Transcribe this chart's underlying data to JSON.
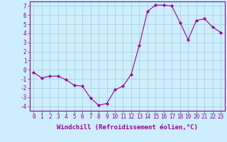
{
  "x": [
    0,
    1,
    2,
    3,
    4,
    5,
    6,
    7,
    8,
    9,
    10,
    11,
    12,
    13,
    14,
    15,
    16,
    17,
    18,
    19,
    20,
    21,
    22,
    23
  ],
  "y": [
    -0.3,
    -0.9,
    -0.7,
    -0.7,
    -1.1,
    -1.7,
    -1.8,
    -3.1,
    -3.9,
    -3.7,
    -2.2,
    -1.8,
    -0.5,
    2.7,
    6.4,
    7.1,
    7.1,
    7.0,
    5.2,
    3.3,
    5.4,
    5.6,
    4.7,
    4.1
  ],
  "line_color": "#990099",
  "marker": "D",
  "marker_size": 2,
  "bg_color": "#cceeff",
  "grid_color": "#aacccc",
  "xlabel": "Windchill (Refroidissement éolien,°C)",
  "xlim": [
    -0.5,
    23.5
  ],
  "ylim": [
    -4.5,
    7.5
  ],
  "yticks": [
    -4,
    -3,
    -2,
    -1,
    0,
    1,
    2,
    3,
    4,
    5,
    6,
    7
  ],
  "xticks": [
    0,
    1,
    2,
    3,
    4,
    5,
    6,
    7,
    8,
    9,
    10,
    11,
    12,
    13,
    14,
    15,
    16,
    17,
    18,
    19,
    20,
    21,
    22,
    23
  ],
  "tick_fontsize": 5.5,
  "xlabel_fontsize": 6.5
}
